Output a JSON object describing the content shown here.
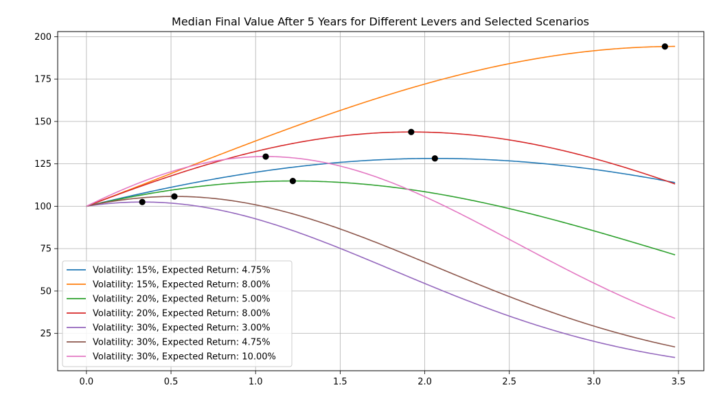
{
  "chart_data": {
    "type": "line",
    "title": "Median Final Value After 5 Years for Different Levers and Selected Scenarios",
    "xlabel": "",
    "ylabel": "",
    "xlim": [
      -0.17,
      3.65
    ],
    "ylim": [
      3,
      203
    ],
    "xticks": [
      0.0,
      0.5,
      1.0,
      1.5,
      2.0,
      2.5,
      3.0,
      3.5
    ],
    "xtick_labels": [
      "0.0",
      "0.5",
      "1.0",
      "1.5",
      "2.0",
      "2.5",
      "3.0",
      "3.5"
    ],
    "yticks": [
      25,
      50,
      75,
      100,
      125,
      150,
      175,
      200
    ],
    "ytick_labels": [
      "25",
      "50",
      "75",
      "100",
      "125",
      "150",
      "175",
      "200"
    ],
    "grid": true,
    "legend_position": "lower-left",
    "x_start": 0.0,
    "x_end": 3.48,
    "series": [
      {
        "name": "Volatility: 15%, Expected Return: 4.75%",
        "color": "#1f77b4",
        "mu": 0.0475,
        "sigma": 0.15,
        "peak": [
          2.06,
          128.2
        ],
        "end_value": 115.4
      },
      {
        "name": "Volatility: 15%, Expected Return: 8.00%",
        "color": "#ff7f0e",
        "mu": 0.08,
        "sigma": 0.15,
        "peak": [
          3.42,
          194.2
        ],
        "end_value": 194.2
      },
      {
        "name": "Volatility: 20%, Expected Return: 5.00%",
        "color": "#2ca02c",
        "mu": 0.05,
        "sigma": 0.2,
        "peak": [
          1.22,
          114.9
        ],
        "end_value": 67.7
      },
      {
        "name": "Volatility: 20%, Expected Return: 8.00%",
        "color": "#d62728",
        "mu": 0.08,
        "sigma": 0.2,
        "peak": [
          1.92,
          143.8
        ],
        "end_value": 111.1
      },
      {
        "name": "Volatility: 30%, Expected Return: 3.00%",
        "color": "#9467bd",
        "mu": 0.03,
        "sigma": 0.3,
        "peak": [
          0.33,
          102.5
        ],
        "end_value": 11.1
      },
      {
        "name": "Volatility: 30%, Expected Return: 4.75%",
        "color": "#8c564b",
        "mu": 0.0475,
        "sigma": 0.3,
        "peak": [
          0.52,
          105.8
        ],
        "end_value": 14.2
      },
      {
        "name": "Volatility: 30%, Expected Return: 10.00%",
        "color": "#e377c2",
        "mu": 0.1,
        "sigma": 0.3,
        "peak": [
          1.06,
          129.3
        ],
        "end_value": 35.3
      }
    ]
  }
}
